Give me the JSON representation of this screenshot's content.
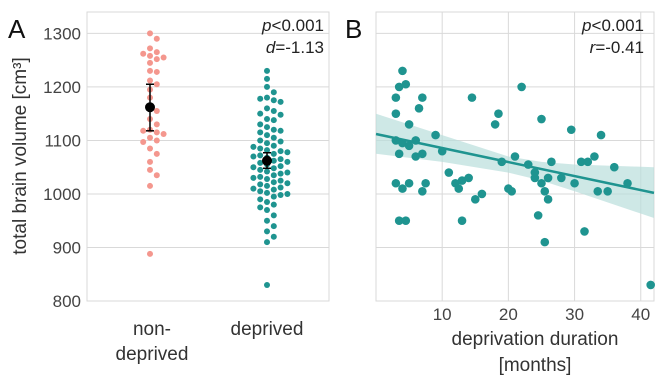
{
  "panels": {
    "a": {
      "letter": "A",
      "stat1_prefix": "p",
      "stat1_rest": "<0.001",
      "stat2_prefix": "d",
      "stat2_rest": "=-1.13"
    },
    "b": {
      "letter": "B",
      "stat1_prefix": "p",
      "stat1_rest": "<0.001",
      "stat2_prefix": "r",
      "stat2_rest": "=-0.41"
    }
  },
  "colors": {
    "non_deprived": "#f4978e",
    "deprived": "#1f9490",
    "mean_marker": "#000000",
    "grid": "#d9d9d9",
    "ci_band": "#b9dedc"
  },
  "chart_data": [
    {
      "type": "scatter",
      "subtype": "swarm",
      "ylabel": "total brain volume [cm³]",
      "ylim": [
        800,
        1340
      ],
      "yticks": [
        800,
        900,
        1000,
        1100,
        1200,
        1300
      ],
      "categories": [
        "non-deprived",
        "deprived"
      ],
      "category_labels": [
        [
          "non-",
          "deprived"
        ],
        [
          "deprived"
        ]
      ],
      "grid": true,
      "series": [
        {
          "name": "non-deprived",
          "values": [
            1300,
            1290,
            1272,
            1265,
            1262,
            1258,
            1255,
            1252,
            1245,
            1230,
            1228,
            1212,
            1205,
            1195,
            1180,
            1165,
            1155,
            1140,
            1130,
            1120,
            1118,
            1115,
            1112,
            1105,
            1100,
            1097,
            1085,
            1075,
            1060,
            1045,
            1035,
            1015,
            888
          ],
          "mean": 1162,
          "ci": [
            1118,
            1205
          ]
        },
        {
          "name": "deprived",
          "values": [
            1230,
            1215,
            1200,
            1190,
            1180,
            1178,
            1175,
            1172,
            1160,
            1155,
            1150,
            1148,
            1140,
            1138,
            1130,
            1125,
            1120,
            1118,
            1115,
            1110,
            1105,
            1100,
            1098,
            1095,
            1090,
            1088,
            1085,
            1082,
            1080,
            1078,
            1075,
            1072,
            1070,
            1068,
            1065,
            1062,
            1060,
            1058,
            1055,
            1052,
            1050,
            1048,
            1045,
            1042,
            1040,
            1038,
            1035,
            1032,
            1030,
            1028,
            1025,
            1022,
            1020,
            1018,
            1015,
            1012,
            1010,
            1008,
            1005,
            1002,
            1000,
            998,
            995,
            990,
            985,
            980,
            975,
            970,
            960,
            950,
            940,
            930,
            920,
            910,
            830
          ],
          "mean": 1062,
          "ci": [
            1048,
            1077
          ]
        }
      ]
    },
    {
      "type": "scatter",
      "xlabel": "deprivation duration",
      "xlabel_unit": "[months]",
      "xlim": [
        0,
        42
      ],
      "xticks": [
        10,
        20,
        30,
        40
      ],
      "ylim": [
        800,
        1340
      ],
      "yticks": [
        800,
        900,
        1000,
        1100,
        1200,
        1300
      ],
      "grid": true,
      "points": [
        [
          3,
          1180
        ],
        [
          4,
          1230
        ],
        [
          3.5,
          1200
        ],
        [
          4.5,
          1205
        ],
        [
          3,
          1150
        ],
        [
          5,
          1130
        ],
        [
          3,
          1100
        ],
        [
          4,
          1095
        ],
        [
          3.5,
          1075
        ],
        [
          5,
          1090
        ],
        [
          3,
          1020
        ],
        [
          4,
          1010
        ],
        [
          5,
          1020
        ],
        [
          3.5,
          950
        ],
        [
          4.5,
          950
        ],
        [
          6,
          1100
        ],
        [
          7,
          1180
        ],
        [
          6.5,
          1160
        ],
        [
          6,
          1070
        ],
        [
          7,
          1075
        ],
        [
          7.5,
          1020
        ],
        [
          7,
          1005
        ],
        [
          9,
          1110
        ],
        [
          10,
          1080
        ],
        [
          11,
          1040
        ],
        [
          12,
          1020
        ],
        [
          13,
          1025
        ],
        [
          12.5,
          1010
        ],
        [
          13,
          950
        ],
        [
          14,
          1030
        ],
        [
          14.5,
          1180
        ],
        [
          15,
          990
        ],
        [
          16,
          1000
        ],
        [
          18,
          1130
        ],
        [
          18.5,
          1150
        ],
        [
          19,
          1060
        ],
        [
          20,
          1010
        ],
        [
          20.5,
          1005
        ],
        [
          21,
          1070
        ],
        [
          22,
          1200
        ],
        [
          23,
          1055
        ],
        [
          24,
          1030
        ],
        [
          24,
          1040
        ],
        [
          25,
          1140
        ],
        [
          25,
          1020
        ],
        [
          25.5,
          1005
        ],
        [
          26,
          1030
        ],
        [
          26,
          990
        ],
        [
          26.5,
          1060
        ],
        [
          25.5,
          910
        ],
        [
          24.5,
          960
        ],
        [
          28,
          1030
        ],
        [
          29.5,
          1120
        ],
        [
          30,
          1020
        ],
        [
          31,
          1060
        ],
        [
          32,
          1060
        ],
        [
          31.5,
          930
        ],
        [
          33,
          1070
        ],
        [
          33.5,
          1005
        ],
        [
          34,
          1110
        ],
        [
          35,
          1005
        ],
        [
          36,
          1050
        ],
        [
          38,
          1020
        ],
        [
          41.5,
          830
        ]
      ],
      "fit_line": {
        "x": [
          0,
          42
        ],
        "y": [
          1112,
          1002
        ]
      },
      "ci_band": {
        "x": [
          0,
          10,
          20,
          25,
          30,
          42
        ],
        "upper": [
          1150,
          1110,
          1070,
          1060,
          1055,
          1050
        ],
        "lower": [
          1075,
          1060,
          1040,
          1025,
          1005,
          955
        ]
      }
    }
  ]
}
